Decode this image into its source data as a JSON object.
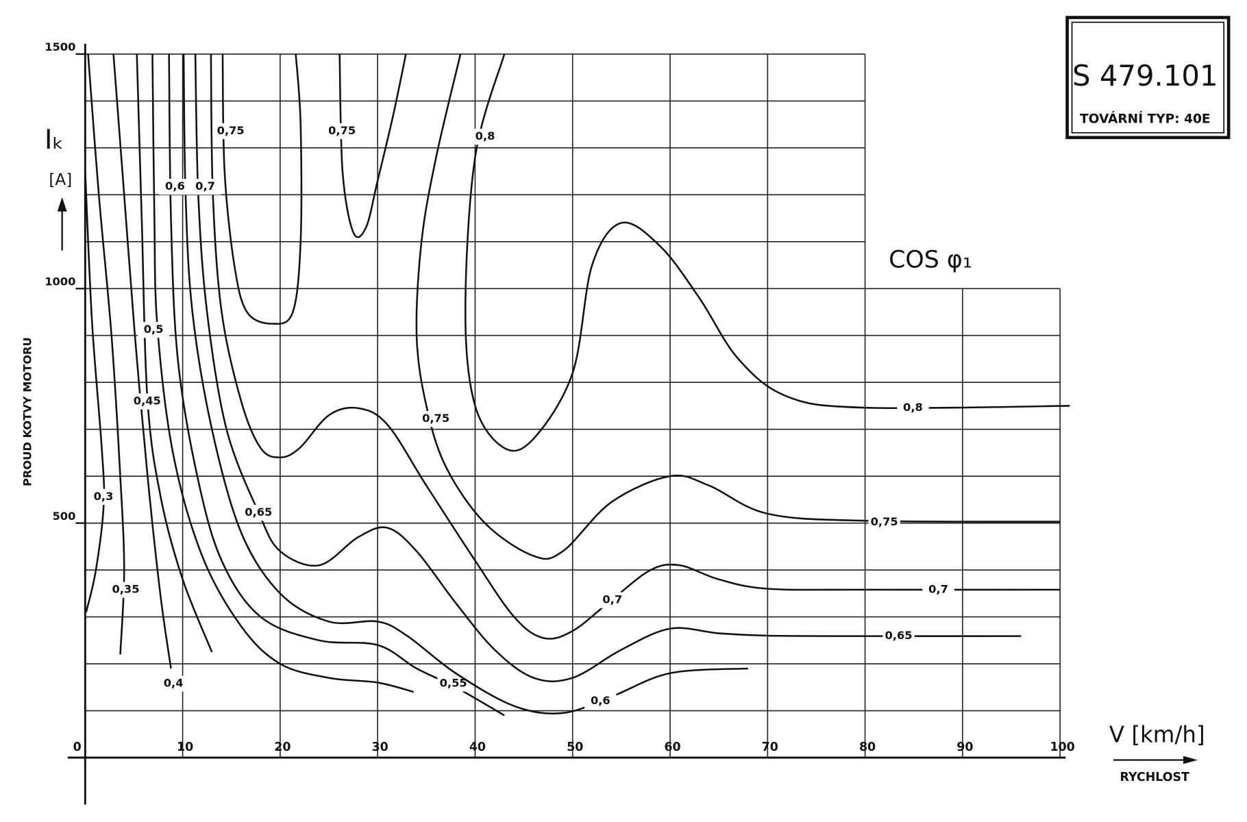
{
  "chart_data": {
    "type": "line",
    "title": "S 479.101",
    "subtitle": "TOVÁRNÍ TYP: 40E",
    "annotation": "COS φ₁",
    "y_symbol": "Iₖ",
    "y_unit": "[A]",
    "y_label": "PROUD KOTVY MOTORU",
    "x_symbol": "V [km/h]",
    "x_label": "RYCHLOST",
    "color": "#111111",
    "grid": true,
    "xlim": [
      0,
      100
    ],
    "ylim": [
      0,
      1500
    ],
    "xticks": [
      0,
      10,
      20,
      30,
      40,
      50,
      60,
      70,
      80,
      90,
      100
    ],
    "yticks": [
      500,
      1000,
      1500
    ],
    "ygrid": [
      0,
      100,
      200,
      300,
      400,
      500,
      600,
      700,
      800,
      900,
      1000,
      1100,
      1200,
      1300,
      1400,
      1500
    ],
    "series": [
      {
        "name": "0,3",
        "x": [
          0,
          0.7,
          1.7,
          1.9,
          1.1,
          0.1
        ],
        "values": [
          1250,
          930,
          660,
          540,
          400,
          310
        ]
      },
      {
        "name": "0,35",
        "x": [
          0.3,
          1.4,
          2.7,
          3.6,
          4,
          3.6
        ],
        "values": [
          1500,
          1200,
          900,
          600,
          400,
          220
        ]
      },
      {
        "name": "0,4",
        "x": [
          2.9,
          4,
          5.1,
          6.4,
          7.7,
          8.8
        ],
        "values": [
          1500,
          1200,
          900,
          600,
          350,
          190
        ]
      },
      {
        "name": "0,45",
        "x": [
          5.3,
          5.8,
          6.4,
          7.8,
          10,
          13
        ],
        "values": [
          1500,
          1150,
          760,
          550,
          380,
          225
        ]
      },
      {
        "name": "0,5",
        "x": [
          6.9,
          7.1,
          7.4,
          9,
          12,
          16,
          20,
          25,
          30,
          33.7
        ],
        "values": [
          1500,
          1150,
          920,
          650,
          430,
          280,
          200,
          170,
          160,
          140
        ]
      },
      {
        "name": "0,55",
        "x": [
          8.6,
          8.8,
          9.5,
          11.5,
          14,
          18,
          24,
          30,
          34,
          38,
          43
        ],
        "values": [
          1500,
          1150,
          850,
          600,
          420,
          300,
          250,
          240,
          190,
          150,
          90
        ]
      },
      {
        "name": "0,6",
        "x": [
          10.1,
          10.3,
          11,
          13,
          16,
          20,
          25,
          30,
          33,
          38,
          44,
          49,
          54,
          60,
          68
        ],
        "values": [
          1500,
          1200,
          950,
          700,
          480,
          350,
          290,
          290,
          260,
          180,
          110,
          95,
          130,
          180,
          190
        ]
      },
      {
        "name": "0,65",
        "x": [
          11.3,
          11.6,
          12.5,
          14.5,
          17.8,
          20,
          24,
          28,
          31,
          34,
          38,
          42,
          46,
          50,
          55,
          60,
          65,
          70,
          80,
          96
        ],
        "values": [
          1500,
          1200,
          950,
          700,
          522,
          440,
          410,
          470,
          490,
          440,
          330,
          230,
          170,
          170,
          230,
          275,
          265,
          260,
          259,
          259
        ]
      },
      {
        "name": "0,7",
        "x": [
          12.9,
          13.1,
          14,
          16,
          18,
          20,
          22,
          25,
          28,
          31,
          35,
          40,
          44,
          47,
          50,
          54,
          58,
          61,
          65,
          70,
          80,
          100
        ],
        "values": [
          1500,
          1200,
          950,
          760,
          660,
          640,
          660,
          730,
          745,
          710,
          580,
          420,
          300,
          255,
          270,
          336,
          400,
          410,
          380,
          360,
          358,
          358
        ]
      },
      {
        "name": "0,75",
        "x": [
          14.1,
          14.3,
          15.3,
          16.6,
          19.2,
          21.3,
          22.1,
          22.1,
          21.6
        ],
        "values": [
          1500,
          1250,
          1050,
          950,
          925,
          950,
          1100,
          1350,
          1500
        ]
      },
      {
        "name": "0,75",
        "x": [
          26.1,
          26.4,
          27.5,
          28.8,
          30,
          31.6,
          32.9
        ],
        "values": [
          1500,
          1250,
          1120,
          1130,
          1230,
          1370,
          1500
        ]
      },
      {
        "name": "0,75",
        "x": [
          38.5,
          36,
          34.5,
          34,
          35,
          37,
          41,
          46,
          49,
          54,
          60,
          64,
          70,
          80,
          100
        ],
        "values": [
          1500,
          1280,
          1100,
          900,
          750,
          620,
          500,
          430,
          440,
          545,
          600,
          580,
          520,
          505,
          503
        ]
      },
      {
        "name": "0,8",
        "x": [
          43,
          40,
          39,
          40,
          43,
          46,
          50,
          52,
          55,
          59,
          63,
          67,
          72,
          80,
          101
        ],
        "values": [
          1500,
          1280,
          950,
          750,
          660,
          680,
          820,
          1050,
          1140,
          1090,
          980,
          850,
          770,
          746,
          750
        ]
      }
    ]
  }
}
